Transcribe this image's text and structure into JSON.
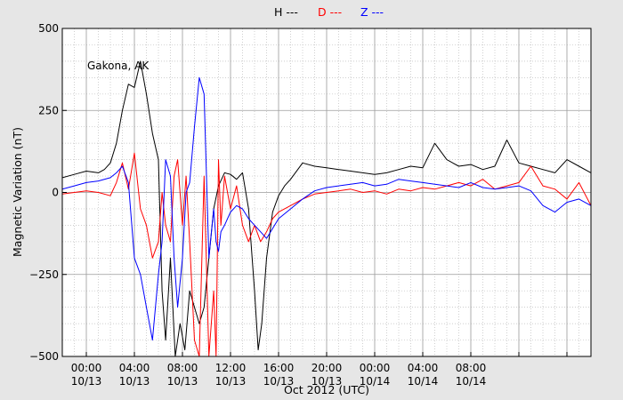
{
  "chart_data": {
    "type": "line",
    "title": "",
    "annotation": "Gakona, AK",
    "xlabel": "Oct 2012 (UTC)",
    "ylabel": "Magnetic Variation (nT)",
    "x_unit": "hours since 2012-10-12 22:00 UTC",
    "xlim": [
      0,
      44
    ],
    "ylim": [
      -500,
      500
    ],
    "yticks": [
      -500,
      -250,
      0,
      250,
      500
    ],
    "ytick_labels": [
      "−500",
      "−250",
      "0",
      "250",
      "500"
    ],
    "xticks": [
      2,
      6,
      10,
      14,
      18,
      22,
      26,
      30,
      34,
      38,
      42
    ],
    "xtick_labels": [
      [
        "00:00",
        "10/13"
      ],
      [
        "04:00",
        "10/13"
      ],
      [
        "08:00",
        "10/13"
      ],
      [
        "12:00",
        "10/13"
      ],
      [
        "16:00",
        "10/13"
      ],
      [
        "20:00",
        "10/13"
      ],
      [
        "00:00",
        "10/14"
      ],
      [
        "04:00",
        "10/14"
      ],
      [
        "08:00",
        "10/14"
      ],
      [
        "",
        ""
      ],
      [
        "",
        ""
      ]
    ],
    "grid": true,
    "legend_position": "top-center",
    "series": [
      {
        "name": "H ---",
        "color": "#000000",
        "x": [
          0,
          1,
          2,
          3,
          3.5,
          4,
          4.5,
          5,
          5.5,
          6,
          6.5,
          7,
          7.5,
          8,
          8.3,
          8.6,
          9,
          9.4,
          9.8,
          10.2,
          10.6,
          11,
          11.4,
          11.8,
          12.2,
          12.6,
          13,
          13.5,
          14,
          14.5,
          15,
          15.5,
          15.8,
          16,
          16.3,
          16.6,
          17,
          17.5,
          18,
          18.5,
          19,
          20,
          21,
          22,
          23,
          24,
          25,
          26,
          27,
          28,
          29,
          30,
          31,
          32,
          33,
          34,
          35,
          36,
          37,
          38,
          39,
          40,
          41,
          42,
          43,
          44
        ],
        "y": [
          45,
          55,
          65,
          60,
          70,
          90,
          150,
          250,
          330,
          320,
          400,
          300,
          180,
          100,
          -300,
          -450,
          -200,
          -500,
          -400,
          -480,
          -300,
          -350,
          -400,
          -350,
          -200,
          -50,
          20,
          60,
          55,
          40,
          60,
          -50,
          -200,
          -300,
          -480,
          -400,
          -200,
          -60,
          -10,
          20,
          40,
          90,
          80,
          75,
          70,
          65,
          60,
          55,
          60,
          70,
          80,
          75,
          150,
          100,
          80,
          85,
          70,
          80,
          160,
          90,
          80,
          70,
          60,
          100,
          80,
          60
        ]
      },
      {
        "name": "D ---",
        "color": "#ff0000",
        "x": [
          0,
          1,
          2,
          3,
          4,
          4.5,
          5,
          5.5,
          6,
          6.5,
          7,
          7.5,
          8,
          8.3,
          8.6,
          9,
          9.3,
          9.6,
          10,
          10.3,
          10.6,
          11,
          11.4,
          11.8,
          12.2,
          12.6,
          12.8,
          13,
          13.2,
          13.5,
          14,
          14.5,
          15,
          15.5,
          16,
          16.5,
          17,
          17.5,
          18,
          19,
          20,
          21,
          22,
          23,
          24,
          25,
          26,
          27,
          28,
          29,
          30,
          31,
          32,
          33,
          34,
          35,
          36,
          37,
          38,
          39,
          40,
          41,
          42,
          43,
          44
        ],
        "y": [
          -5,
          0,
          5,
          0,
          -10,
          30,
          90,
          10,
          120,
          -50,
          -100,
          -200,
          -150,
          0,
          -100,
          -150,
          50,
          100,
          -100,
          50,
          -150,
          -450,
          -500,
          50,
          -500,
          -300,
          -500,
          100,
          -100,
          50,
          -50,
          20,
          -100,
          -150,
          -100,
          -150,
          -120,
          -80,
          -60,
          -40,
          -20,
          -5,
          0,
          5,
          10,
          0,
          5,
          -5,
          10,
          5,
          15,
          10,
          20,
          30,
          20,
          40,
          10,
          20,
          30,
          80,
          20,
          10,
          -20,
          30,
          -40
        ]
      },
      {
        "name": "Z ---",
        "color": "#0000ff",
        "x": [
          0,
          1,
          2,
          3,
          4,
          4.5,
          5,
          5.5,
          6,
          6.5,
          7,
          7.5,
          8,
          8.3,
          8.6,
          9,
          9.3,
          9.6,
          10,
          10.3,
          10.6,
          11,
          11.4,
          11.8,
          12.2,
          12.6,
          12.8,
          13,
          13.2,
          13.5,
          14,
          14.5,
          15,
          15.5,
          16,
          16.5,
          17,
          17.5,
          18,
          19,
          20,
          21,
          22,
          23,
          24,
          25,
          26,
          27,
          28,
          29,
          30,
          31,
          32,
          33,
          34,
          35,
          36,
          37,
          38,
          39,
          40,
          41,
          42,
          43,
          44
        ],
        "y": [
          10,
          20,
          30,
          35,
          45,
          60,
          80,
          30,
          -200,
          -250,
          -350,
          -450,
          -250,
          -150,
          100,
          50,
          -200,
          -350,
          -200,
          0,
          30,
          200,
          350,
          300,
          -200,
          -50,
          -150,
          -180,
          -120,
          -100,
          -60,
          -40,
          -50,
          -80,
          -100,
          -120,
          -140,
          -110,
          -80,
          -50,
          -20,
          5,
          15,
          20,
          25,
          30,
          20,
          25,
          40,
          35,
          30,
          25,
          20,
          15,
          30,
          15,
          10,
          15,
          20,
          5,
          -40,
          -60,
          -30,
          -20,
          -40
        ]
      }
    ]
  },
  "legend": {
    "H": "H ---",
    "D": "D ---",
    "Z": "Z ---"
  },
  "colors": {
    "background": "#e6e6e6",
    "plot_bg": "#ffffff",
    "H": "#000000",
    "D": "#ff0000",
    "Z": "#0000ff"
  }
}
